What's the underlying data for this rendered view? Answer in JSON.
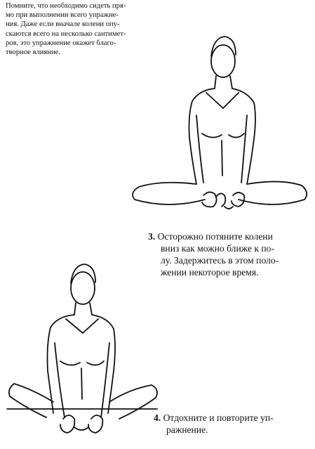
{
  "intro": {
    "lines": [
      "Помните, что необходимо сидеть пря-",
      "мо при выполнении всего упражне-",
      "ния. Даже если вначале колени опу-",
      "скаются всего на несколько сантимет-",
      "ров, это упражнение окажет благо-",
      "творное влияние."
    ]
  },
  "step3": {
    "number": "3.",
    "lines": [
      "Осторожно потяните колени",
      "вниз как можно ближе к по-",
      "лу. Задержитесь в этом поло-",
      "жении некоторое время."
    ]
  },
  "step4": {
    "number": "4.",
    "lines": [
      "Отдохните и повторите уп-",
      "ражнение."
    ]
  },
  "figures": {
    "top": "seated-butterfly-upright-figure",
    "bottom": "seated-butterfly-hands-on-feet-figure"
  }
}
